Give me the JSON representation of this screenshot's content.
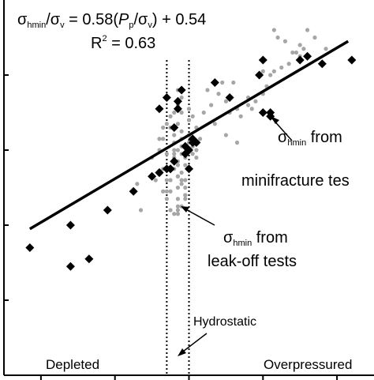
{
  "equation": {
    "sigma": "σ",
    "hmin": "hmin",
    "over_sigma": "/σ",
    "v": "v",
    "mid1": " = 0.58(",
    "P": "P",
    "p": "p",
    "mid2": "/σ",
    "v2": "v",
    "tail": ") + 0.54",
    "r2_prefix": "R",
    "r2_sup": "2",
    "r2_suffix": " = 0.63"
  },
  "annotations": {
    "minifrac": {
      "sigma": "σ",
      "sub": "hmin",
      "word": " from",
      "line2": "minifracture tes"
    },
    "leakoff": {
      "sigma": "σ",
      "sub": "hmin",
      "word": " from",
      "line2": "leak-off tests"
    },
    "hydrostatic": "Hydrostatic",
    "depleted": "Depleted",
    "overpressured": "Overpressured"
  },
  "chart_data": {
    "type": "scatter",
    "xlim": [
      0,
      1
    ],
    "ylim": [
      0,
      1
    ],
    "grid": false,
    "x_ticks": [
      0.1,
      0.3,
      0.5,
      0.7,
      0.9
    ],
    "y_ticks": [
      0.2,
      0.4,
      0.6,
      0.8
    ],
    "reference_lines": [
      {
        "label": "Hydrostatic",
        "x": 0.44,
        "style": "dotted"
      },
      {
        "label": "",
        "x": 0.5,
        "style": "dotted"
      }
    ],
    "fit_line": {
      "slope": 0.58,
      "intercept": 0.54,
      "from": [
        0.07,
        0.39
      ],
      "to": [
        0.93,
        0.89
      ]
    },
    "series": [
      {
        "name": "σhmin from minifracture tests",
        "marker": "diamond",
        "color": "#000000",
        "x": [
          0.07,
          0.23,
          0.18,
          0.28,
          0.18,
          0.35,
          0.4,
          0.42,
          0.42,
          0.44,
          0.45,
          0.45,
          0.46,
          0.47,
          0.47,
          0.48,
          0.49,
          0.49,
          0.5,
          0.51,
          0.51,
          0.52,
          0.5,
          0.46,
          0.44,
          0.42,
          0.57,
          0.61,
          0.69,
          0.7,
          0.72,
          0.72,
          0.7,
          0.8,
          0.82,
          0.86,
          0.94
        ],
        "y": [
          0.34,
          0.31,
          0.4,
          0.44,
          0.29,
          0.49,
          0.53,
          0.54,
          0.71,
          0.74,
          0.55,
          0.55,
          0.66,
          0.73,
          0.71,
          0.76,
          0.59,
          0.61,
          0.55,
          0.63,
          0.62,
          0.62,
          0.6,
          0.57,
          0.55,
          0.54,
          0.78,
          0.74,
          0.8,
          0.7,
          0.69,
          0.7,
          0.84,
          0.84,
          0.85,
          0.83,
          0.84
        ]
      },
      {
        "name": "σhmin from leak-off tests",
        "marker": "circle",
        "color": "#a6a6a6",
        "x": [
          0.37,
          0.4,
          0.42,
          0.43,
          0.43,
          0.44,
          0.44,
          0.45,
          0.45,
          0.45,
          0.46,
          0.46,
          0.46,
          0.46,
          0.47,
          0.47,
          0.47,
          0.47,
          0.47,
          0.48,
          0.48,
          0.48,
          0.48,
          0.49,
          0.49,
          0.49,
          0.49,
          0.49,
          0.5,
          0.5,
          0.5,
          0.51,
          0.51,
          0.51,
          0.52,
          0.52,
          0.53,
          0.45,
          0.46,
          0.47,
          0.47,
          0.48,
          0.49,
          0.45,
          0.46,
          0.47,
          0.48,
          0.5,
          0.44,
          0.43,
          0.45,
          0.47,
          0.46,
          0.47,
          0.48,
          0.49,
          0.44,
          0.46,
          0.47,
          0.47,
          0.48,
          0.48,
          0.47,
          0.48,
          0.5,
          0.51,
          0.43,
          0.41,
          0.44,
          0.42,
          0.5,
          0.52,
          0.54,
          0.56,
          0.55,
          0.58,
          0.59,
          0.61,
          0.63,
          0.66,
          0.67,
          0.68,
          0.7,
          0.71,
          0.72,
          0.73,
          0.75,
          0.77,
          0.79,
          0.8,
          0.82,
          0.84,
          0.87,
          0.62,
          0.6,
          0.57,
          0.73,
          0.74,
          0.76,
          0.78,
          0.8,
          0.81,
          0.7,
          0.66,
          0.64,
          0.36,
          0.6,
          0.63
        ],
        "y": [
          0.44,
          0.58,
          0.63,
          0.63,
          0.55,
          0.52,
          0.49,
          0.49,
          0.52,
          0.55,
          0.58,
          0.6,
          0.62,
          0.64,
          0.45,
          0.47,
          0.5,
          0.53,
          0.56,
          0.59,
          0.61,
          0.63,
          0.65,
          0.47,
          0.5,
          0.52,
          0.56,
          0.58,
          0.6,
          0.62,
          0.64,
          0.59,
          0.61,
          0.63,
          0.58,
          0.6,
          0.63,
          0.44,
          0.43,
          0.43,
          0.44,
          0.45,
          0.48,
          0.69,
          0.7,
          0.72,
          0.7,
          0.68,
          0.67,
          0.66,
          0.66,
          0.67,
          0.55,
          0.53,
          0.51,
          0.48,
          0.59,
          0.59,
          0.6,
          0.57,
          0.54,
          0.52,
          0.76,
          0.74,
          0.71,
          0.69,
          0.49,
          0.52,
          0.47,
          0.6,
          0.68,
          0.66,
          0.7,
          0.72,
          0.76,
          0.75,
          0.78,
          0.7,
          0.71,
          0.72,
          0.71,
          0.73,
          0.75,
          0.77,
          0.8,
          0.81,
          0.82,
          0.83,
          0.86,
          0.88,
          0.92,
          0.9,
          0.87,
          0.78,
          0.73,
          0.67,
          0.92,
          0.9,
          0.89,
          0.86,
          0.85,
          0.87,
          0.81,
          0.74,
          0.69,
          0.51,
          0.64,
          0.62
        ]
      }
    ]
  }
}
